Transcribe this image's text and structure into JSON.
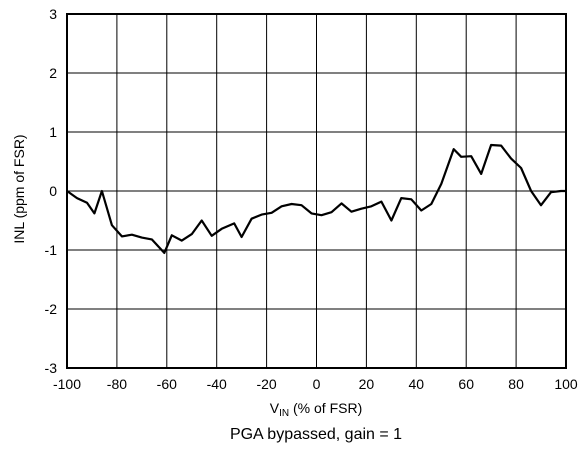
{
  "chart_data": {
    "type": "line",
    "xlabel": {
      "main": "V",
      "sub": "IN",
      "rest": " (% of FSR)"
    },
    "ylabel": "INL (ppm of FSR)",
    "caption": "PGA bypassed, gain = 1",
    "xlim": [
      -100,
      100
    ],
    "ylim": [
      -3,
      3
    ],
    "x_ticks": [
      -100,
      -80,
      -60,
      -40,
      -20,
      0,
      20,
      40,
      60,
      80,
      100
    ],
    "y_ticks": [
      -3,
      -2,
      -1,
      0,
      1,
      2,
      3
    ],
    "grid": true,
    "series": [
      {
        "color": "#000000",
        "points": [
          [
            -100,
            0.0
          ],
          [
            -96,
            -0.12
          ],
          [
            -92,
            -0.2
          ],
          [
            -89,
            -0.38
          ],
          [
            -86,
            0.0
          ],
          [
            -82,
            -0.58
          ],
          [
            -78,
            -0.77
          ],
          [
            -74,
            -0.74
          ],
          [
            -70,
            -0.79
          ],
          [
            -66,
            -0.82
          ],
          [
            -61,
            -1.05
          ],
          [
            -58,
            -0.75
          ],
          [
            -54,
            -0.84
          ],
          [
            -50,
            -0.73
          ],
          [
            -46,
            -0.5
          ],
          [
            -42,
            -0.76
          ],
          [
            -38,
            -0.64
          ],
          [
            -33,
            -0.55
          ],
          [
            -30,
            -0.78
          ],
          [
            -26,
            -0.47
          ],
          [
            -22,
            -0.4
          ],
          [
            -18,
            -0.37
          ],
          [
            -14,
            -0.26
          ],
          [
            -10,
            -0.22
          ],
          [
            -6,
            -0.24
          ],
          [
            -2,
            -0.38
          ],
          [
            2,
            -0.41
          ],
          [
            6,
            -0.36
          ],
          [
            10,
            -0.21
          ],
          [
            14,
            -0.35
          ],
          [
            18,
            -0.3
          ],
          [
            22,
            -0.26
          ],
          [
            26,
            -0.18
          ],
          [
            30,
            -0.5
          ],
          [
            34,
            -0.12
          ],
          [
            38,
            -0.14
          ],
          [
            42,
            -0.33
          ],
          [
            46,
            -0.22
          ],
          [
            50,
            0.12
          ],
          [
            55,
            0.71
          ],
          [
            58,
            0.58
          ],
          [
            62,
            0.59
          ],
          [
            66,
            0.29
          ],
          [
            70,
            0.78
          ],
          [
            74,
            0.77
          ],
          [
            78,
            0.55
          ],
          [
            82,
            0.39
          ],
          [
            86,
            0.0
          ],
          [
            90,
            -0.24
          ],
          [
            94,
            -0.02
          ],
          [
            98,
            0.0
          ],
          [
            100,
            0.0
          ]
        ]
      }
    ]
  }
}
